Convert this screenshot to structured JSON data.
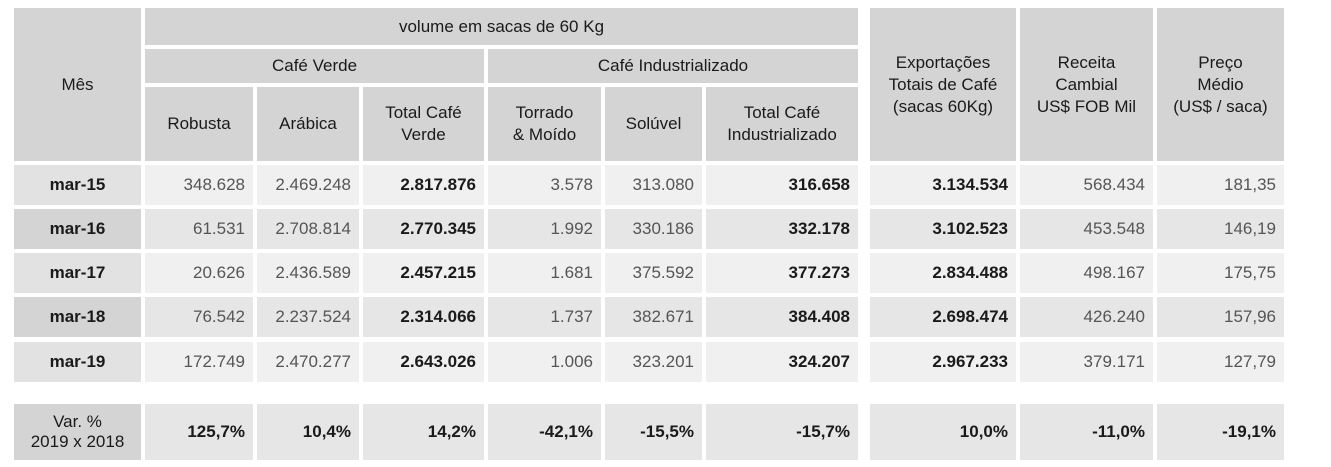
{
  "header": {
    "mes": "Mês",
    "volume": "volume em sacas de 60 Kg",
    "cafe_verde": "Café Verde",
    "cafe_industrializado": "Café Industrializado",
    "robusta": "Robusta",
    "arabica": "Arábica",
    "total_verde_l1": "Total Café",
    "total_verde_l2": "Verde",
    "torrado_l1": "Torrado",
    "torrado_l2": "& Moído",
    "soluvel": "Solúvel",
    "total_ind_l1": "Total Café",
    "total_ind_l2": "Industrializado",
    "exp_l1": "Exportações",
    "exp_l2": "Totais de Café",
    "exp_l3": "(sacas 60Kg)",
    "rec_l1": "Receita",
    "rec_l2": "Cambial",
    "rec_l3": "US$ FOB Mil",
    "preco_l1": "Preço",
    "preco_l2": "Médio",
    "preco_l3": "(US$ / saca)"
  },
  "rows": [
    {
      "mes": "mar-15",
      "robusta": "348.628",
      "arabica": "2.469.248",
      "total_verde": "2.817.876",
      "torrado": "3.578",
      "soluvel": "313.080",
      "total_ind": "316.658",
      "exportacoes": "3.134.534",
      "receita": "568.434",
      "preco": "181,35"
    },
    {
      "mes": "mar-16",
      "robusta": "61.531",
      "arabica": "2.708.814",
      "total_verde": "2.770.345",
      "torrado": "1.992",
      "soluvel": "330.186",
      "total_ind": "332.178",
      "exportacoes": "3.102.523",
      "receita": "453.548",
      "preco": "146,19"
    },
    {
      "mes": "mar-17",
      "robusta": "20.626",
      "arabica": "2.436.589",
      "total_verde": "2.457.215",
      "torrado": "1.681",
      "soluvel": "375.592",
      "total_ind": "377.273",
      "exportacoes": "2.834.488",
      "receita": "498.167",
      "preco": "175,75"
    },
    {
      "mes": "mar-18",
      "robusta": "76.542",
      "arabica": "2.237.524",
      "total_verde": "2.314.066",
      "torrado": "1.737",
      "soluvel": "382.671",
      "total_ind": "384.408",
      "exportacoes": "2.698.474",
      "receita": "426.240",
      "preco": "157,96"
    },
    {
      "mes": "mar-19",
      "robusta": "172.749",
      "arabica": "2.470.277",
      "total_verde": "2.643.026",
      "torrado": "1.006",
      "soluvel": "323.201",
      "total_ind": "324.207",
      "exportacoes": "2.967.233",
      "receita": "379.171",
      "preco": "127,79"
    }
  ],
  "variation": {
    "label_l1": "Var. %",
    "label_l2": "2019 x 2018",
    "robusta": "125,7%",
    "arabica": "10,4%",
    "total_verde": "14,2%",
    "torrado": "-42,1%",
    "soluvel": "-15,5%",
    "total_ind": "-15,7%",
    "exportacoes": "10,0%",
    "receita": "-11,0%",
    "preco": "-19,1%"
  }
}
